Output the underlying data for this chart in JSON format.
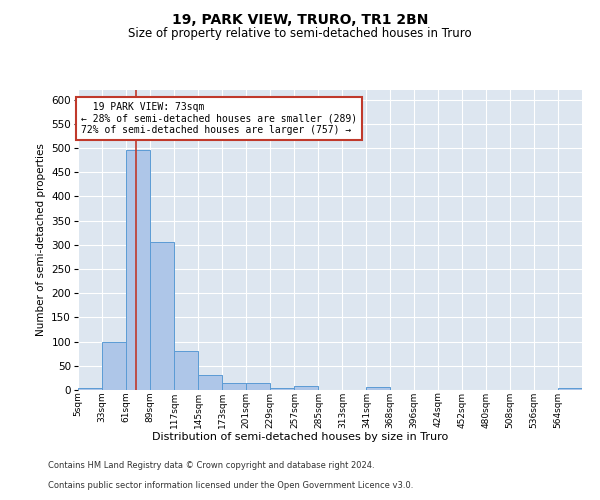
{
  "title": "19, PARK VIEW, TRURO, TR1 2BN",
  "subtitle": "Size of property relative to semi-detached houses in Truro",
  "xlabel": "Distribution of semi-detached houses by size in Truro",
  "ylabel": "Number of semi-detached properties",
  "property_size": 73,
  "property_label": "19 PARK VIEW: 73sqm",
  "smaller_pct": 28,
  "smaller_count": 289,
  "larger_pct": 72,
  "larger_count": 757,
  "bar_color": "#aec6e8",
  "bar_edge_color": "#5b9bd5",
  "marker_color": "#c0392b",
  "background_color": "#dde6f0",
  "annotation_box_color": "#ffffff",
  "annotation_box_edge": "#c0392b",
  "bin_edges": [
    5,
    33,
    61,
    89,
    117,
    145,
    173,
    201,
    229,
    257,
    285,
    313,
    341,
    368,
    396,
    424,
    452,
    480,
    508,
    536,
    564,
    592
  ],
  "bin_labels": [
    "5sqm",
    "33sqm",
    "61sqm",
    "89sqm",
    "117sqm",
    "145sqm",
    "173sqm",
    "201sqm",
    "229sqm",
    "257sqm",
    "285sqm",
    "313sqm",
    "341sqm",
    "368sqm",
    "396sqm",
    "424sqm",
    "452sqm",
    "480sqm",
    "508sqm",
    "536sqm",
    "564sqm"
  ],
  "bar_heights": [
    5,
    100,
    495,
    305,
    80,
    30,
    15,
    14,
    5,
    8,
    0,
    0,
    7,
    0,
    0,
    0,
    0,
    0,
    0,
    0,
    5
  ],
  "ylim": [
    0,
    620
  ],
  "yticks": [
    0,
    50,
    100,
    150,
    200,
    250,
    300,
    350,
    400,
    450,
    500,
    550,
    600
  ],
  "footer1": "Contains HM Land Registry data © Crown copyright and database right 2024.",
  "footer2": "Contains public sector information licensed under the Open Government Licence v3.0."
}
